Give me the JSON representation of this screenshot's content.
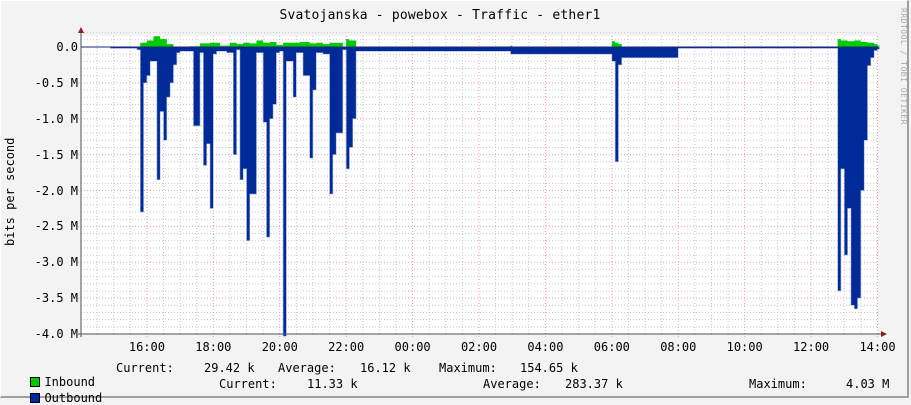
{
  "title": "Svatojanska - powebox - Traffic - ether1",
  "watermark": "RRDTOOL / TOBI OETIKER",
  "colors": {
    "inbound": "#00cc00",
    "outbound": "#002a97",
    "outbound_edge": "#aab8e0",
    "grid_major": "#f0a0a0",
    "grid_minor": "#c8c8c8",
    "axis": "#505050",
    "arrow": "#902020"
  },
  "legend": {
    "inbound": {
      "label": "Inbound",
      "current_label": "Current:",
      "current": "29.42 k",
      "average_label": "Average:",
      "average": "16.12 k",
      "maximum_label": "Maximum:",
      "maximum": "154.65 k"
    },
    "outbound": {
      "label": "Outbound",
      "current_label": "Current:",
      "current": "11.33 k",
      "average_label": "Average:",
      "average": "283.37 k",
      "maximum_label": "Maximum:",
      "maximum": "4.03 M"
    }
  },
  "chart_data": {
    "type": "area",
    "title": "Svatojanska - powebox - Traffic - ether1",
    "xlabel": "",
    "ylabel": "bits per second",
    "ylim": [
      -4000000,
      150000
    ],
    "grid": true,
    "legend_position": "bottom",
    "y_ticks": [
      "0.0",
      "-0.5 M",
      "-1.0 M",
      "-1.5 M",
      "-2.0 M",
      "-2.5 M",
      "-3.0 M",
      "-3.5 M",
      "-4.0 M"
    ],
    "x_ticks": [
      "16:00",
      "18:00",
      "20:00",
      "22:00",
      "00:00",
      "02:00",
      "04:00",
      "06:00",
      "08:00",
      "10:00",
      "12:00",
      "14:00"
    ],
    "x_hours_from_start": [
      16,
      18,
      20,
      22,
      24,
      26,
      28,
      30,
      32,
      34,
      36,
      38
    ],
    "x_range_hours": [
      14.0,
      38.0
    ],
    "series": [
      {
        "name": "Inbound",
        "note": "plotted positive (upward)",
        "x": [
          15.7,
          15.8,
          16.0,
          16.2,
          16.4,
          16.6,
          16.8,
          17.0,
          17.3,
          17.6,
          17.9,
          18.2,
          18.5,
          18.7,
          18.9,
          19.1,
          19.3,
          19.5,
          19.7,
          19.9,
          20.1,
          20.3,
          20.6,
          20.9,
          21.1,
          21.3,
          21.5,
          21.7,
          21.9,
          22.0,
          22.1,
          22.3,
          26.95,
          27.0,
          30.0,
          30.1,
          30.2,
          30.3,
          36.8,
          36.9,
          37.1,
          37.3,
          37.5,
          37.7,
          37.9,
          38.0
        ],
        "values": [
          0,
          60000,
          90000,
          150000,
          110000,
          40000,
          0,
          0,
          10000,
          50000,
          60000,
          20000,
          60000,
          40000,
          60000,
          50000,
          90000,
          60000,
          70000,
          30000,
          60000,
          60000,
          70000,
          50000,
          60000,
          40000,
          60000,
          60000,
          0,
          110000,
          90000,
          0,
          20000,
          0,
          80000,
          60000,
          40000,
          0,
          110000,
          90000,
          80000,
          90000,
          70000,
          60000,
          40000,
          20000
        ]
      },
      {
        "name": "Outbound",
        "note": "plotted negative (downward)",
        "x": [
          14.9,
          15.7,
          15.8,
          15.9,
          16.0,
          16.1,
          16.3,
          16.4,
          16.5,
          16.6,
          16.7,
          16.8,
          16.9,
          17.0,
          17.4,
          17.6,
          17.7,
          17.8,
          17.9,
          18.0,
          18.1,
          18.2,
          18.4,
          18.6,
          18.7,
          18.8,
          18.9,
          19.0,
          19.1,
          19.3,
          19.5,
          19.6,
          19.7,
          19.8,
          19.9,
          20.0,
          20.1,
          20.2,
          20.4,
          20.5,
          20.7,
          20.9,
          21.0,
          21.1,
          21.3,
          21.5,
          21.6,
          21.7,
          21.9,
          22.0,
          22.1,
          22.2,
          22.3,
          26.95,
          30.0,
          30.1,
          30.2,
          30.3,
          32.0,
          36.8,
          36.9,
          37.0,
          37.1,
          37.2,
          37.3,
          37.4,
          37.5,
          37.6,
          37.7,
          37.8,
          37.9,
          38.0
        ],
        "values": [
          -20000,
          -40000,
          -2300000,
          -500000,
          -400000,
          -200000,
          -1850000,
          -900000,
          -1300000,
          -700000,
          -500000,
          -250000,
          -80000,
          -60000,
          -1100000,
          -80000,
          -1650000,
          -1350000,
          -2250000,
          -100000,
          -60000,
          -60000,
          -80000,
          -1500000,
          -40000,
          -1850000,
          -1700000,
          -2700000,
          -2050000,
          -80000,
          -1050000,
          -2650000,
          -1000000,
          -800000,
          -80000,
          -60000,
          -4030000,
          -200000,
          -700000,
          -80000,
          -400000,
          -1550000,
          -600000,
          -80000,
          -100000,
          -2050000,
          -1500000,
          -1200000,
          -40000,
          -1700000,
          -1400000,
          -1000000,
          -60000,
          -100000,
          -200000,
          -1600000,
          -250000,
          -150000,
          -20000,
          -3400000,
          -1700000,
          -2900000,
          -2250000,
          -3600000,
          -3650000,
          -3500000,
          -2000000,
          -1300000,
          -260000,
          -150000,
          -50000,
          -30000
        ]
      }
    ],
    "summary": {
      "Inbound": {
        "current": "29.42 k",
        "average": "16.12 k",
        "maximum": "154.65 k"
      },
      "Outbound": {
        "current": "11.33 k",
        "average": "283.37 k",
        "maximum": "4.03 M"
      }
    }
  }
}
